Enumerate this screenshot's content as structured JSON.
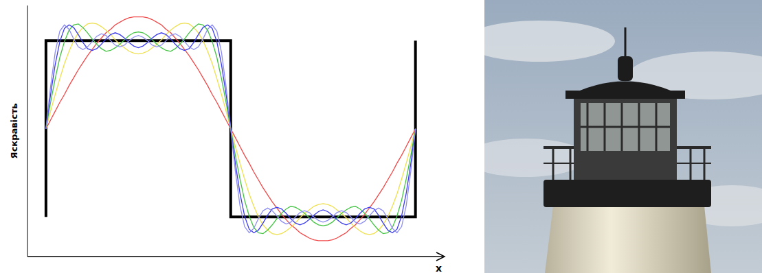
{
  "chart_data": {
    "type": "line",
    "x_label": "x",
    "y_label": "Яскравість",
    "xlim": [
      -0.1,
      2.15
    ],
    "ylim": [
      -1.45,
      1.4
    ],
    "grid": false,
    "tick_labels": false,
    "x": [
      0,
      0.025,
      0.05,
      0.075,
      0.1,
      0.125,
      0.15,
      0.175,
      0.2,
      0.225,
      0.25,
      0.275,
      0.3,
      0.325,
      0.35,
      0.375,
      0.4,
      0.425,
      0.45,
      0.475,
      0.5,
      0.525,
      0.55,
      0.575,
      0.6,
      0.625,
      0.65,
      0.675,
      0.7,
      0.725,
      0.75,
      0.775,
      0.8,
      0.825,
      0.85,
      0.875,
      0.9,
      0.925,
      0.95,
      0.975,
      1,
      1.025,
      1.05,
      1.075,
      1.1,
      1.125,
      1.15,
      1.175,
      1.2,
      1.225,
      1.25,
      1.275,
      1.3,
      1.325,
      1.35,
      1.375,
      1.4,
      1.425,
      1.45,
      1.475,
      1.5,
      1.525,
      1.55,
      1.575,
      1.6,
      1.625,
      1.65,
      1.675,
      1.7,
      1.725,
      1.75,
      1.775,
      1.8,
      1.825,
      1.85,
      1.875,
      1.9,
      1.925,
      1.95,
      1.975,
      2
    ],
    "series": [
      {
        "color": "#000000",
        "x": [
          0,
          0,
          1,
          1,
          2,
          2
        ],
        "values": [
          -1,
          1,
          1,
          -1,
          -1,
          1
        ]
      },
      {
        "color": "#f04848",
        "values": [
          0,
          0.1,
          0.2,
          0.3,
          0.39,
          0.49,
          0.58,
          0.67,
          0.75,
          0.83,
          0.9,
          0.97,
          1.03,
          1.09,
          1.13,
          1.18,
          1.21,
          1.24,
          1.26,
          1.27,
          1.27,
          1.27,
          1.26,
          1.24,
          1.21,
          1.18,
          1.13,
          1.09,
          1.03,
          0.97,
          0.9,
          0.83,
          0.75,
          0.67,
          0.58,
          0.49,
          0.39,
          0.3,
          0.2,
          0.1,
          0,
          -0.1,
          -0.2,
          -0.3,
          -0.39,
          -0.49,
          -0.58,
          -0.67,
          -0.75,
          -0.83,
          -0.9,
          -0.97,
          -1.03,
          -1.09,
          -1.13,
          -1.18,
          -1.21,
          -1.24,
          -1.26,
          -1.27,
          -1.27,
          -1.27,
          -1.26,
          -1.24,
          -1.21,
          -1.18,
          -1.13,
          -1.09,
          -1.03,
          -0.97,
          -0.9,
          -0.83,
          -0.75,
          -0.67,
          -0.58,
          -0.49,
          -0.39,
          -0.3,
          -0.2,
          -0.1,
          0
        ]
      },
      {
        "color": "#eee050",
        "values": [
          0,
          0.2,
          0.39,
          0.57,
          0.74,
          0.88,
          1.0,
          1.09,
          1.15,
          1.19,
          1.2,
          1.19,
          1.16,
          1.12,
          1.07,
          1.01,
          0.96,
          0.92,
          0.88,
          0.86,
          0.85,
          0.86,
          0.88,
          0.92,
          0.96,
          1.01,
          1.07,
          1.12,
          1.16,
          1.19,
          1.2,
          1.19,
          1.15,
          1.09,
          1.0,
          0.88,
          0.74,
          0.57,
          0.39,
          0.2,
          0,
          -0.2,
          -0.39,
          -0.57,
          -0.74,
          -0.88,
          -1.0,
          -1.09,
          -1.15,
          -1.19,
          -1.2,
          -1.19,
          -1.16,
          -1.12,
          -1.07,
          -1.01,
          -0.96,
          -0.92,
          -0.88,
          -0.86,
          -0.85,
          -0.86,
          -0.88,
          -0.92,
          -0.96,
          -1.01,
          -1.07,
          -1.12,
          -1.16,
          -1.19,
          -1.2,
          -1.19,
          -1.15,
          -1.09,
          -1.0,
          -0.88,
          -0.74,
          -0.57,
          -0.39,
          -0.2,
          0
        ]
      },
      {
        "color": "#44c444",
        "values": [
          0,
          0.3,
          0.57,
          0.81,
          0.99,
          1.12,
          1.18,
          1.19,
          1.15,
          1.09,
          1.02,
          0.96,
          0.91,
          0.88,
          0.89,
          0.92,
          0.96,
          1.01,
          1.06,
          1.09,
          1.1,
          1.09,
          1.06,
          1.01,
          0.96,
          0.92,
          0.89,
          0.88,
          0.91,
          0.96,
          1.02,
          1.09,
          1.15,
          1.19,
          1.18,
          1.12,
          0.99,
          0.81,
          0.57,
          0.3,
          0,
          -0.3,
          -0.57,
          -0.81,
          -0.99,
          -1.12,
          -1.18,
          -1.19,
          -1.15,
          -1.09,
          -1.02,
          -0.96,
          -0.91,
          -0.88,
          -0.89,
          -0.92,
          -0.96,
          -1.01,
          -1.06,
          -1.09,
          -1.1,
          -1.09,
          -1.06,
          -1.01,
          -0.96,
          -0.92,
          -0.89,
          -0.88,
          -0.91,
          -0.96,
          -1.02,
          -1.09,
          -1.15,
          -1.19,
          -1.18,
          -1.12,
          -0.99,
          -0.81,
          -0.57,
          -0.3,
          0
        ]
      },
      {
        "color": "#3a3af0",
        "values": [
          0,
          0.39,
          0.73,
          0.99,
          1.14,
          1.18,
          1.15,
          1.07,
          0.98,
          0.91,
          0.89,
          0.91,
          0.96,
          1.02,
          1.07,
          1.09,
          1.07,
          1.03,
          0.98,
          0.94,
          0.92,
          0.94,
          0.98,
          1.03,
          1.07,
          1.09,
          1.07,
          1.02,
          0.96,
          0.91,
          0.89,
          0.91,
          0.98,
          1.07,
          1.15,
          1.18,
          1.14,
          0.99,
          0.73,
          0.39,
          0,
          -0.39,
          -0.73,
          -0.99,
          -1.14,
          -1.18,
          -1.15,
          -1.07,
          -0.98,
          -0.91,
          -0.89,
          -0.91,
          -0.96,
          -1.02,
          -1.07,
          -1.09,
          -1.07,
          -1.03,
          -0.98,
          -0.94,
          -0.92,
          -0.94,
          -0.98,
          -1.03,
          -1.07,
          -1.09,
          -1.07,
          -1.02,
          -0.96,
          -0.91,
          -0.89,
          -0.91,
          -0.98,
          -1.07,
          -1.15,
          -1.18,
          -1.14,
          -0.99,
          -0.73,
          -0.39,
          0
        ]
      },
      {
        "color": "#8c8cf4",
        "values": [
          0,
          0.48,
          0.87,
          1.11,
          1.18,
          1.13,
          1.02,
          0.93,
          0.9,
          0.93,
          0.99,
          1.05,
          1.08,
          1.06,
          1.0,
          0.95,
          0.93,
          0.95,
          1.0,
          1.04,
          1.06,
          1.04,
          1.0,
          0.95,
          0.93,
          0.95,
          1.0,
          1.06,
          1.08,
          1.05,
          0.99,
          0.93,
          0.9,
          0.93,
          1.02,
          1.13,
          1.18,
          1.11,
          0.87,
          0.48,
          0,
          -0.48,
          -0.87,
          -1.11,
          -1.18,
          -1.13,
          -1.02,
          -0.93,
          -0.9,
          -0.93,
          -0.99,
          -1.05,
          -1.08,
          -1.06,
          -1.0,
          -0.95,
          -0.93,
          -0.95,
          -1.0,
          -1.04,
          -1.06,
          -1.04,
          -1.0,
          -0.95,
          -0.93,
          -0.95,
          -1.0,
          -1.06,
          -1.08,
          -1.05,
          -0.99,
          -0.93,
          -0.9,
          -0.93,
          -1.02,
          -1.13,
          -1.18,
          -1.11,
          -0.87,
          -0.48,
          0
        ]
      }
    ]
  }
}
